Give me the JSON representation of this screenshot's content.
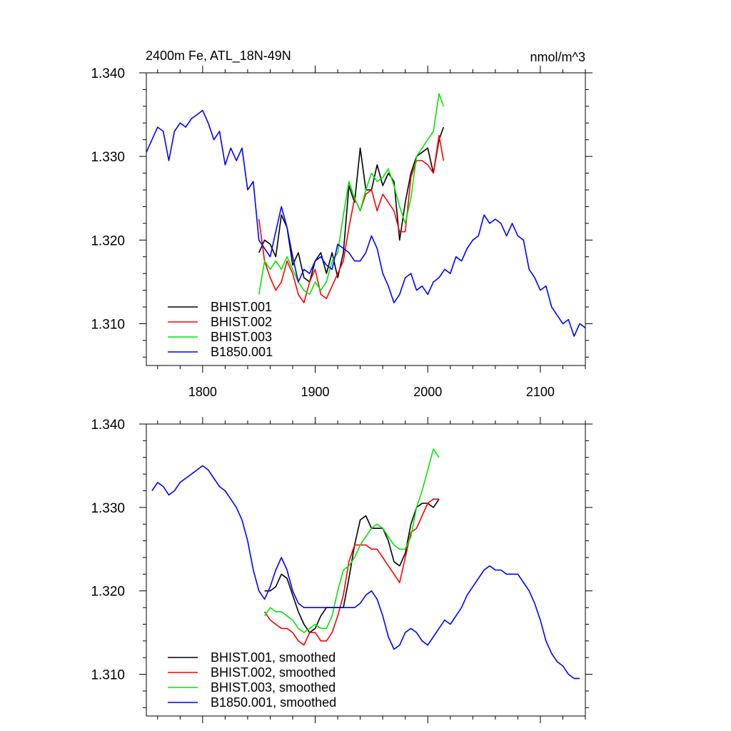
{
  "header": {
    "title": "2400m Fe, ATL_18N-49N",
    "units": "nmol/m^3"
  },
  "colors": {
    "BHIST.001": "#000000",
    "BHIST.002": "#ff0000",
    "BHIST.003": "#00e600",
    "B1850.001": "#0000ff"
  },
  "chart_data": [
    {
      "type": "line",
      "title": "2400m Fe, ATL_18N-49N",
      "units_label": "nmol/m^3",
      "xlim": [
        1750,
        2140
      ],
      "ylim": [
        1.305,
        1.34
      ],
      "x_ticks": [
        1800,
        1900,
        2000,
        2100
      ],
      "x_tick_labels": [
        "1800",
        "1900",
        "2000",
        "2100"
      ],
      "y_ticks": [
        1.31,
        1.32,
        1.33,
        1.34
      ],
      "y_tick_labels": [
        "1.310",
        "1.320",
        "1.330",
        "1.340"
      ],
      "legend_position": "bottom-left",
      "series": [
        {
          "name": "BHIST.001",
          "color": "#000000",
          "x": [
            1850,
            1855,
            1860,
            1865,
            1870,
            1875,
            1880,
            1885,
            1890,
            1895,
            1900,
            1905,
            1910,
            1915,
            1920,
            1925,
            1930,
            1935,
            1940,
            1945,
            1950,
            1955,
            1960,
            1965,
            1970,
            1975,
            1980,
            1985,
            1990,
            1995,
            2000,
            2005,
            2010,
            2014
          ],
          "y": [
            1.3185,
            1.32,
            1.3195,
            1.318,
            1.323,
            1.3215,
            1.317,
            1.3185,
            1.3155,
            1.315,
            1.3175,
            1.3185,
            1.316,
            1.3185,
            1.3155,
            1.3185,
            1.3265,
            1.3245,
            1.331,
            1.326,
            1.326,
            1.329,
            1.3265,
            1.328,
            1.327,
            1.32,
            1.3245,
            1.328,
            1.33,
            1.3305,
            1.331,
            1.328,
            1.332,
            1.3335
          ]
        },
        {
          "name": "BHIST.002",
          "color": "#ff0000",
          "x": [
            1850,
            1855,
            1860,
            1865,
            1870,
            1875,
            1880,
            1885,
            1890,
            1895,
            1900,
            1905,
            1910,
            1915,
            1920,
            1925,
            1930,
            1935,
            1940,
            1945,
            1950,
            1955,
            1960,
            1965,
            1970,
            1975,
            1980,
            1985,
            1990,
            1995,
            2000,
            2005,
            2010,
            2014
          ],
          "y": [
            1.3225,
            1.3175,
            1.3155,
            1.314,
            1.315,
            1.3175,
            1.316,
            1.3135,
            1.3125,
            1.315,
            1.3165,
            1.3135,
            1.313,
            1.3145,
            1.316,
            1.3175,
            1.3215,
            1.325,
            1.3235,
            1.3255,
            1.326,
            1.3235,
            1.3255,
            1.3245,
            1.3235,
            1.321,
            1.321,
            1.3275,
            1.3295,
            1.3295,
            1.329,
            1.328,
            1.3325,
            1.3295
          ]
        },
        {
          "name": "BHIST.003",
          "color": "#00e600",
          "x": [
            1850,
            1855,
            1860,
            1865,
            1870,
            1875,
            1880,
            1885,
            1890,
            1895,
            1900,
            1905,
            1910,
            1915,
            1920,
            1925,
            1930,
            1935,
            1940,
            1945,
            1950,
            1955,
            1960,
            1965,
            1970,
            1975,
            1980,
            1985,
            1990,
            1995,
            2000,
            2005,
            2010,
            2014
          ],
          "y": [
            1.3135,
            1.3175,
            1.3165,
            1.3175,
            1.3165,
            1.318,
            1.3165,
            1.315,
            1.314,
            1.3135,
            1.315,
            1.314,
            1.315,
            1.3175,
            1.3185,
            1.323,
            1.327,
            1.325,
            1.3235,
            1.326,
            1.328,
            1.327,
            1.3275,
            1.3285,
            1.3265,
            1.324,
            1.322,
            1.325,
            1.33,
            1.331,
            1.332,
            1.333,
            1.3375,
            1.336
          ]
        },
        {
          "name": "B1850.001",
          "color": "#0000ff",
          "x": [
            1750,
            1755,
            1760,
            1765,
            1770,
            1775,
            1780,
            1785,
            1790,
            1795,
            1800,
            1805,
            1810,
            1815,
            1820,
            1825,
            1830,
            1835,
            1840,
            1845,
            1850,
            1855,
            1860,
            1865,
            1870,
            1875,
            1880,
            1885,
            1890,
            1895,
            1900,
            1905,
            1910,
            1915,
            1920,
            1925,
            1930,
            1935,
            1940,
            1945,
            1950,
            1955,
            1960,
            1965,
            1970,
            1975,
            1980,
            1985,
            1990,
            1995,
            2000,
            2005,
            2010,
            2015,
            2020,
            2025,
            2030,
            2035,
            2040,
            2045,
            2050,
            2055,
            2060,
            2065,
            2070,
            2075,
            2080,
            2085,
            2090,
            2095,
            2100,
            2105,
            2110,
            2115,
            2120,
            2125,
            2130,
            2135,
            2140
          ],
          "y": [
            1.3305,
            1.332,
            1.3335,
            1.333,
            1.3295,
            1.333,
            1.334,
            1.3335,
            1.3345,
            1.335,
            1.3355,
            1.334,
            1.332,
            1.333,
            1.329,
            1.331,
            1.3295,
            1.331,
            1.326,
            1.327,
            1.32,
            1.319,
            1.318,
            1.321,
            1.324,
            1.3215,
            1.318,
            1.315,
            1.3165,
            1.316,
            1.3175,
            1.318,
            1.317,
            1.3165,
            1.3195,
            1.319,
            1.3185,
            1.3175,
            1.3175,
            1.3185,
            1.3205,
            1.319,
            1.316,
            1.3145,
            1.3125,
            1.3135,
            1.3155,
            1.316,
            1.314,
            1.3145,
            1.3135,
            1.315,
            1.3155,
            1.3165,
            1.316,
            1.318,
            1.3175,
            1.319,
            1.32,
            1.3205,
            1.323,
            1.322,
            1.3225,
            1.322,
            1.3205,
            1.322,
            1.3205,
            1.32,
            1.3165,
            1.3155,
            1.314,
            1.3145,
            1.312,
            1.311,
            1.31,
            1.3105,
            1.3085,
            1.31,
            1.3095
          ]
        }
      ]
    },
    {
      "type": "line",
      "xlim": [
        1750,
        2140
      ],
      "ylim": [
        1.305,
        1.34
      ],
      "x_ticks": [
        1800,
        1900,
        2000,
        2100
      ],
      "y_ticks": [
        1.31,
        1.32,
        1.33,
        1.34
      ],
      "y_tick_labels": [
        "1.310",
        "1.320",
        "1.330",
        "1.340"
      ],
      "legend_position": "bottom-left",
      "series": [
        {
          "name": "BHIST.001, smoothed",
          "color": "#000000",
          "x": [
            1855,
            1860,
            1865,
            1870,
            1875,
            1880,
            1885,
            1890,
            1895,
            1900,
            1905,
            1910,
            1915,
            1920,
            1925,
            1930,
            1935,
            1940,
            1945,
            1950,
            1955,
            1960,
            1965,
            1970,
            1975,
            1980,
            1985,
            1990,
            1995,
            2000,
            2005,
            2010
          ],
          "y": [
            1.32,
            1.32,
            1.3205,
            1.322,
            1.3215,
            1.3195,
            1.3175,
            1.316,
            1.315,
            1.3155,
            1.317,
            1.318,
            1.318,
            1.318,
            1.318,
            1.3215,
            1.3255,
            1.3285,
            1.329,
            1.3275,
            1.3275,
            1.3275,
            1.326,
            1.3235,
            1.323,
            1.3245,
            1.328,
            1.33,
            1.3305,
            1.3305,
            1.33,
            1.331
          ]
        },
        {
          "name": "BHIST.002, smoothed",
          "color": "#ff0000",
          "x": [
            1855,
            1860,
            1865,
            1870,
            1875,
            1880,
            1885,
            1890,
            1895,
            1900,
            1905,
            1910,
            1915,
            1920,
            1925,
            1930,
            1935,
            1940,
            1945,
            1950,
            1955,
            1960,
            1965,
            1970,
            1975,
            1980,
            1985,
            1990,
            1995,
            2000,
            2005,
            2010
          ],
          "y": [
            1.3175,
            1.3165,
            1.316,
            1.3155,
            1.3155,
            1.315,
            1.314,
            1.3135,
            1.315,
            1.315,
            1.314,
            1.314,
            1.315,
            1.317,
            1.3195,
            1.3235,
            1.3255,
            1.3255,
            1.3255,
            1.325,
            1.325,
            1.324,
            1.323,
            1.322,
            1.321,
            1.324,
            1.327,
            1.3275,
            1.329,
            1.3305,
            1.331,
            1.331
          ]
        },
        {
          "name": "BHIST.003, smoothed",
          "color": "#00e600",
          "x": [
            1855,
            1860,
            1865,
            1870,
            1875,
            1880,
            1885,
            1890,
            1895,
            1900,
            1905,
            1910,
            1915,
            1920,
            1925,
            1930,
            1935,
            1940,
            1945,
            1950,
            1955,
            1960,
            1965,
            1970,
            1975,
            1980,
            1985,
            1990,
            1995,
            2000,
            2005,
            2010
          ],
          "y": [
            1.317,
            1.318,
            1.3175,
            1.3175,
            1.317,
            1.3165,
            1.3155,
            1.315,
            1.3155,
            1.316,
            1.3155,
            1.3155,
            1.317,
            1.32,
            1.3225,
            1.323,
            1.324,
            1.3255,
            1.3265,
            1.3275,
            1.328,
            1.3275,
            1.3265,
            1.3255,
            1.325,
            1.325,
            1.3265,
            1.33,
            1.332,
            1.3345,
            1.337,
            1.336
          ]
        },
        {
          "name": "B1850.001, smoothed",
          "color": "#0000ff",
          "x": [
            1755,
            1760,
            1765,
            1770,
            1775,
            1780,
            1785,
            1790,
            1795,
            1800,
            1805,
            1810,
            1815,
            1820,
            1825,
            1830,
            1835,
            1840,
            1845,
            1850,
            1855,
            1860,
            1865,
            1870,
            1875,
            1880,
            1885,
            1890,
            1895,
            1900,
            1905,
            1910,
            1915,
            1920,
            1925,
            1930,
            1935,
            1940,
            1945,
            1950,
            1955,
            1960,
            1965,
            1970,
            1975,
            1980,
            1985,
            1990,
            1995,
            2000,
            2005,
            2010,
            2015,
            2020,
            2025,
            2030,
            2035,
            2040,
            2045,
            2050,
            2055,
            2060,
            2065,
            2070,
            2075,
            2080,
            2085,
            2090,
            2095,
            2100,
            2105,
            2110,
            2115,
            2120,
            2125,
            2130,
            2135
          ],
          "y": [
            1.332,
            1.333,
            1.3325,
            1.3315,
            1.332,
            1.333,
            1.3335,
            1.334,
            1.3345,
            1.335,
            1.3345,
            1.3335,
            1.3325,
            1.332,
            1.331,
            1.33,
            1.3285,
            1.326,
            1.3225,
            1.32,
            1.319,
            1.3205,
            1.3225,
            1.324,
            1.3225,
            1.32,
            1.3185,
            1.318,
            1.318,
            1.318,
            1.318,
            1.318,
            1.318,
            1.318,
            1.318,
            1.318,
            1.318,
            1.3185,
            1.3195,
            1.32,
            1.319,
            1.317,
            1.3145,
            1.313,
            1.3135,
            1.315,
            1.3155,
            1.315,
            1.314,
            1.3135,
            1.3145,
            1.3155,
            1.3165,
            1.316,
            1.317,
            1.318,
            1.3195,
            1.3205,
            1.3215,
            1.3225,
            1.323,
            1.3225,
            1.3225,
            1.322,
            1.322,
            1.322,
            1.321,
            1.32,
            1.3185,
            1.3165,
            1.314,
            1.3125,
            1.3115,
            1.311,
            1.31,
            1.3095,
            1.3095
          ]
        }
      ]
    }
  ]
}
